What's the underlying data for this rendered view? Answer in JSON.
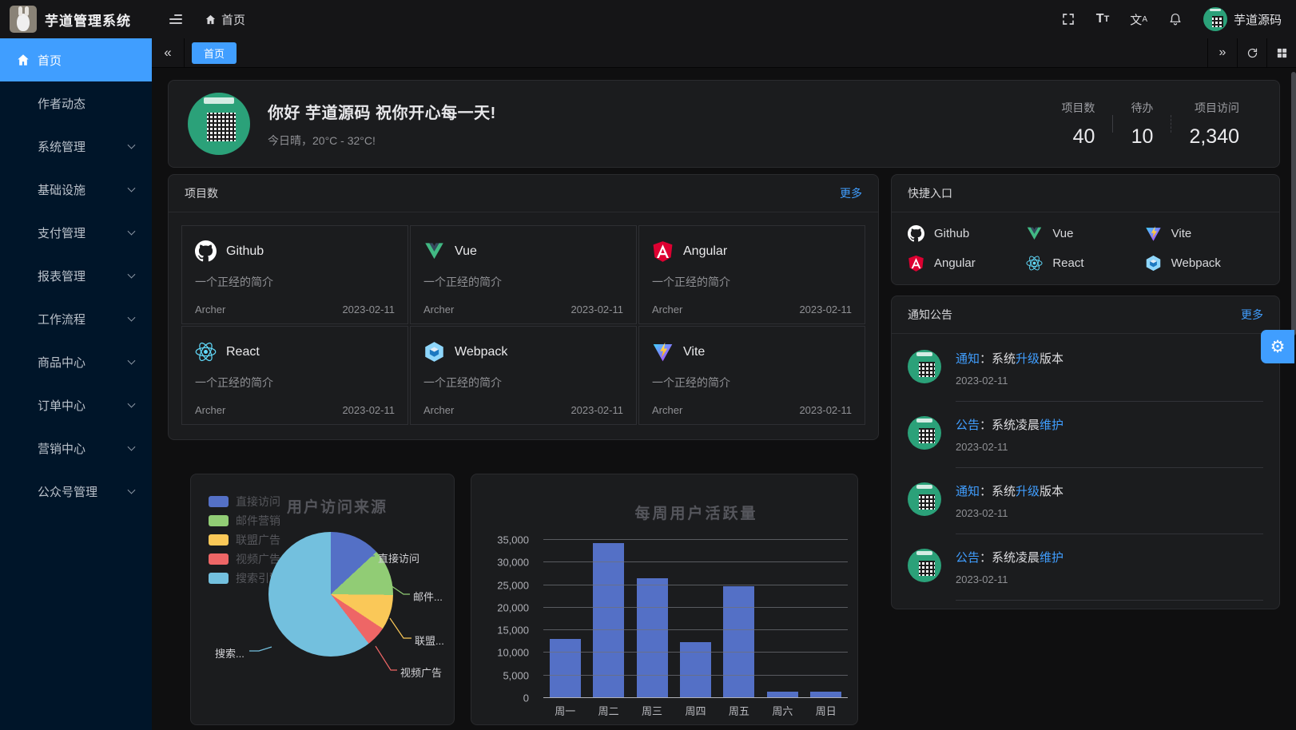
{
  "header": {
    "app_title": "芋道管理系统",
    "breadcrumb_home": "首页",
    "username": "芋道源码",
    "icons": [
      "menu-collapse-icon",
      "home-icon",
      "fullscreen-icon",
      "font-size-icon",
      "locale-icon",
      "notification-bell-icon",
      "user-avatar"
    ]
  },
  "sidebar": {
    "items": [
      {
        "label": "首页",
        "icon": "home",
        "active": true,
        "expandable": false
      },
      {
        "label": "作者动态",
        "active": false,
        "expandable": false
      },
      {
        "label": "系统管理",
        "active": false,
        "expandable": true
      },
      {
        "label": "基础设施",
        "active": false,
        "expandable": true
      },
      {
        "label": "支付管理",
        "active": false,
        "expandable": true
      },
      {
        "label": "报表管理",
        "active": false,
        "expandable": true
      },
      {
        "label": "工作流程",
        "active": false,
        "expandable": true
      },
      {
        "label": "商品中心",
        "active": false,
        "expandable": true
      },
      {
        "label": "订单中心",
        "active": false,
        "expandable": true
      },
      {
        "label": "营销中心",
        "active": false,
        "expandable": true
      },
      {
        "label": "公众号管理",
        "active": false,
        "expandable": true
      }
    ]
  },
  "tabbar": {
    "tabs": [
      {
        "label": "首页",
        "active": true
      }
    ]
  },
  "greeting": {
    "title": "你好 芋道源码 祝你开心每一天!",
    "subtitle": "今日晴，20°C - 32°C!",
    "stats": [
      {
        "label": "项目数",
        "value": "40"
      },
      {
        "label": "待办",
        "value": "10"
      },
      {
        "label": "项目访问",
        "value": "2,340"
      }
    ]
  },
  "projects": {
    "title": "项目数",
    "more_label": "更多",
    "items": [
      {
        "name": "Github",
        "icon": "github",
        "desc": "一个正经的简介",
        "author": "Archer",
        "date": "2023-02-11"
      },
      {
        "name": "Vue",
        "icon": "vue",
        "desc": "一个正经的简介",
        "author": "Archer",
        "date": "2023-02-11"
      },
      {
        "name": "Angular",
        "icon": "angular",
        "desc": "一个正经的简介",
        "author": "Archer",
        "date": "2023-02-11"
      },
      {
        "name": "React",
        "icon": "react",
        "desc": "一个正经的简介",
        "author": "Archer",
        "date": "2023-02-11"
      },
      {
        "name": "Webpack",
        "icon": "webpack",
        "desc": "一个正经的简介",
        "author": "Archer",
        "date": "2023-02-11"
      },
      {
        "name": "Vite",
        "icon": "vite",
        "desc": "一个正经的简介",
        "author": "Archer",
        "date": "2023-02-11"
      }
    ]
  },
  "shortcuts": {
    "title": "快捷入口",
    "items": [
      {
        "name": "Github",
        "icon": "github"
      },
      {
        "name": "Vue",
        "icon": "vue"
      },
      {
        "name": "Vite",
        "icon": "vite"
      },
      {
        "name": "Angular",
        "icon": "angular"
      },
      {
        "name": "React",
        "icon": "react"
      },
      {
        "name": "Webpack",
        "icon": "webpack"
      }
    ]
  },
  "notices": {
    "title": "通知公告",
    "more_label": "更多",
    "items": [
      {
        "segments": [
          {
            "text": "通知",
            "highlight": true
          },
          {
            "text": "：系统",
            "highlight": false
          },
          {
            "text": "升级",
            "highlight": true
          },
          {
            "text": "版本",
            "highlight": false
          }
        ],
        "date": "2023-02-11"
      },
      {
        "segments": [
          {
            "text": "公告",
            "highlight": true
          },
          {
            "text": "：系统凌晨",
            "highlight": false
          },
          {
            "text": "维护",
            "highlight": true
          }
        ],
        "date": "2023-02-11"
      },
      {
        "segments": [
          {
            "text": "通知",
            "highlight": true
          },
          {
            "text": "：系统",
            "highlight": false
          },
          {
            "text": "升级",
            "highlight": true
          },
          {
            "text": "版本",
            "highlight": false
          }
        ],
        "date": "2023-02-11"
      },
      {
        "segments": [
          {
            "text": "公告",
            "highlight": true
          },
          {
            "text": "：系统凌晨",
            "highlight": false
          },
          {
            "text": "维护",
            "highlight": true
          }
        ],
        "date": "2023-02-11"
      }
    ]
  },
  "colors": {
    "accent": "#409eff",
    "sidebar_bg": "#001529",
    "card_bg": "#1b1c1e",
    "link": "#409eff"
  },
  "chart_data": [
    {
      "type": "pie",
      "title": "用户访问来源",
      "legend_position": "left",
      "series": [
        {
          "name": "直接访问",
          "value": 335,
          "color": "#5470c6",
          "callout": "直接访问"
        },
        {
          "name": "邮件营销",
          "value": 310,
          "color": "#91cc75",
          "callout": "邮件..."
        },
        {
          "name": "联盟广告",
          "value": 234,
          "color": "#fac858",
          "callout": "联盟..."
        },
        {
          "name": "视频广告",
          "value": 135,
          "color": "#ee6666",
          "callout": "视频广告"
        },
        {
          "name": "搜索引擎",
          "value": 1548,
          "color": "#73c0de",
          "callout": "搜索..."
        }
      ]
    },
    {
      "type": "bar",
      "title": "每周用户活跃量",
      "categories": [
        "周一",
        "周二",
        "周三",
        "周四",
        "周五",
        "周六",
        "周日"
      ],
      "values": [
        13100,
        34300,
        26600,
        12300,
        24700,
        1400,
        1400
      ],
      "ylim": [
        0,
        35000
      ],
      "ytick_step": 5000,
      "bar_color": "#5470c6",
      "grid": true
    }
  ]
}
